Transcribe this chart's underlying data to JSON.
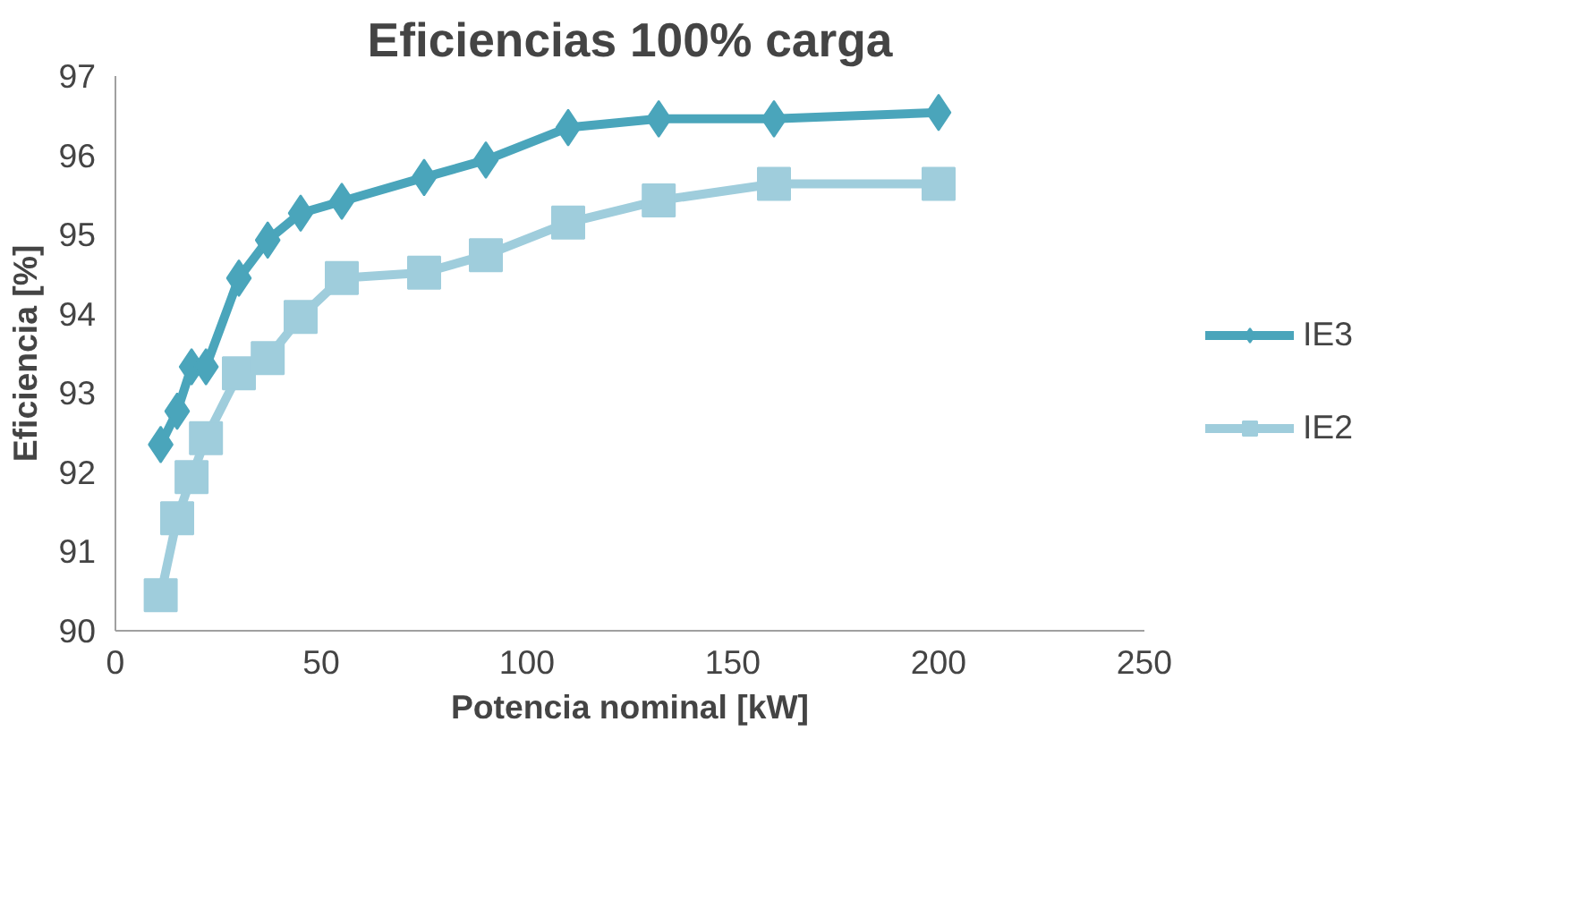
{
  "chart_data": {
    "type": "line",
    "title": "Eficiencias 100% carga",
    "xlabel": "Potencia nominal [kW]",
    "ylabel": "Eficiencia [%]",
    "xlim": [
      0,
      250
    ],
    "xticks": [
      0,
      50,
      100,
      150,
      200,
      250
    ],
    "ylim": [
      90,
      97
    ],
    "yticks": [
      90,
      91,
      92,
      93,
      94,
      95,
      96,
      97
    ],
    "grid": false,
    "legend": "right",
    "line_style": "solid",
    "x": [
      11,
      15,
      18.5,
      22,
      30,
      37,
      45,
      55,
      75,
      90,
      110,
      132,
      160,
      200
    ],
    "series": [
      {
        "name": "IE3",
        "color": "#4aa5bb",
        "marker": "diamond",
        "values": [
          92.35,
          92.77,
          93.33,
          93.33,
          94.45,
          94.93,
          95.27,
          95.42,
          95.72,
          95.94,
          96.35,
          96.46,
          96.46,
          96.54
        ]
      },
      {
        "name": "IE2",
        "color": "#9fcddc",
        "marker": "square",
        "values": [
          90.45,
          91.42,
          91.94,
          92.43,
          93.25,
          93.44,
          93.96,
          94.45,
          94.52,
          94.74,
          95.15,
          95.43,
          95.64,
          95.64
        ]
      }
    ]
  }
}
